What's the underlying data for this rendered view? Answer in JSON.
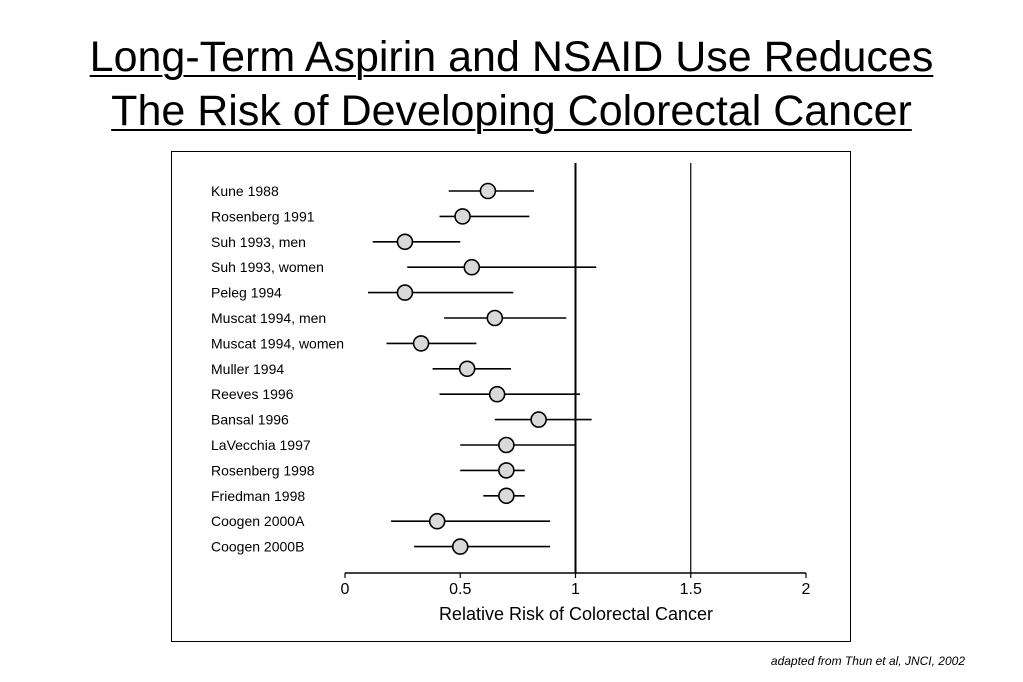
{
  "title": {
    "line1": "Long-Term Aspirin and NSAID Use Reduces",
    "line2": "The Risk of Developing Colorectal Cancer"
  },
  "footnote": "adapted from Thun et al, JNCI, 2002",
  "chart_data": {
    "type": "scatter",
    "subtype": "forest-plot",
    "xlabel": "Relative Risk of Colorectal Cancer",
    "xlim": [
      0,
      2
    ],
    "xticks": [
      0,
      0.5,
      1,
      1.5,
      2
    ],
    "tick_labels": [
      "0",
      "0.5",
      "1",
      "1.5",
      "2"
    ],
    "reference_lines": [
      1,
      1.5
    ],
    "grid": false,
    "marker_color": "#d9d9d9",
    "studies": [
      {
        "label": "Kune 1988",
        "rr": 0.62,
        "lower": 0.45,
        "upper": 0.82
      },
      {
        "label": "Rosenberg 1991",
        "rr": 0.51,
        "lower": 0.41,
        "upper": 0.8
      },
      {
        "label": "Suh 1993, men",
        "rr": 0.26,
        "lower": 0.12,
        "upper": 0.5
      },
      {
        "label": "Suh 1993, women",
        "rr": 0.55,
        "lower": 0.27,
        "upper": 1.09
      },
      {
        "label": "Peleg 1994",
        "rr": 0.26,
        "lower": 0.1,
        "upper": 0.73
      },
      {
        "label": "Muscat 1994, men",
        "rr": 0.65,
        "lower": 0.43,
        "upper": 0.96
      },
      {
        "label": "Muscat 1994, women",
        "rr": 0.33,
        "lower": 0.18,
        "upper": 0.57
      },
      {
        "label": "Muller 1994",
        "rr": 0.53,
        "lower": 0.38,
        "upper": 0.72
      },
      {
        "label": "Reeves 1996",
        "rr": 0.66,
        "lower": 0.41,
        "upper": 1.02
      },
      {
        "label": "Bansal 1996",
        "rr": 0.84,
        "lower": 0.65,
        "upper": 1.07
      },
      {
        "label": "LaVecchia 1997",
        "rr": 0.7,
        "lower": 0.5,
        "upper": 1.0
      },
      {
        "label": "Rosenberg 1998",
        "rr": 0.7,
        "lower": 0.5,
        "upper": 0.78
      },
      {
        "label": "Friedman 1998",
        "rr": 0.7,
        "lower": 0.6,
        "upper": 0.78
      },
      {
        "label": "Coogen 2000A",
        "rr": 0.4,
        "lower": 0.2,
        "upper": 0.89
      },
      {
        "label": "Coogen 2000B",
        "rr": 0.5,
        "lower": 0.3,
        "upper": 0.89
      }
    ]
  }
}
